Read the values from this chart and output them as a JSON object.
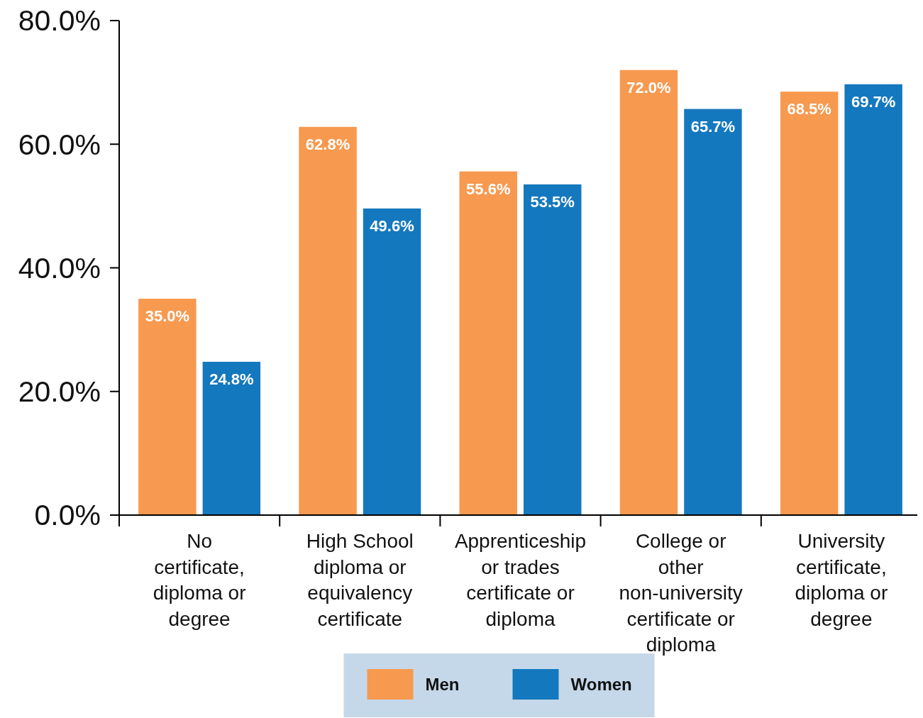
{
  "chart_data": {
    "type": "bar",
    "categories": [
      "No certificate, diploma or degree",
      "High School diploma or equivalency certificate",
      "Apprenticeship or trades certificate or diploma",
      "College or other non-university certificate or diploma",
      "University certificate, diploma or degree"
    ],
    "series": [
      {
        "name": "Men",
        "color": "#f7994f",
        "values": [
          35.0,
          62.8,
          55.6,
          72.0,
          68.5
        ],
        "value_labels": [
          "35.0%",
          "62.8%",
          "55.6%",
          "72.0%",
          "68.5%"
        ]
      },
      {
        "name": "Women",
        "color": "#1478be",
        "values": [
          24.8,
          49.6,
          53.5,
          65.7,
          69.7
        ],
        "value_labels": [
          "24.8%",
          "49.6%",
          "53.5%",
          "65.7%",
          "69.7%"
        ]
      }
    ],
    "ylim": [
      0,
      80
    ],
    "yticks": [
      {
        "value": 0,
        "label": "0.0%"
      },
      {
        "value": 20,
        "label": "20.0%"
      },
      {
        "value": 40,
        "label": "40.0%"
      },
      {
        "value": 60,
        "label": "60.0%"
      },
      {
        "value": 80,
        "label": "80.0%"
      }
    ],
    "grid": false,
    "legend": "bottom"
  }
}
